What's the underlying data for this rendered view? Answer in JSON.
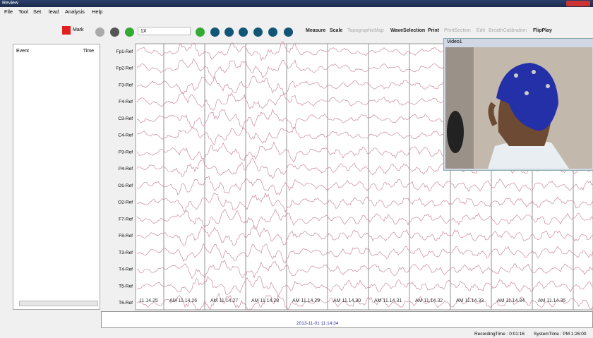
{
  "window": {
    "title": "Review"
  },
  "menu": [
    "File",
    "Tool",
    "Set",
    "lead",
    "Analysis",
    "Help"
  ],
  "toolbar": {
    "mark": "Mark",
    "speed": "1X",
    "buttons": [
      "Measure",
      "Scale",
      "TopographicMap",
      "WaveSelection",
      "Print",
      "PrintSection",
      "Edit",
      "BreathCalibration",
      "FlipPlay"
    ]
  },
  "event_list": {
    "headers": [
      "Event",
      "Time"
    ]
  },
  "channels": [
    "Fp1-Ref",
    "Fp2-Ref",
    "F3-Ref",
    "F4-Ref",
    "C3-Ref",
    "C4-Ref",
    "P3-Ref",
    "P4-Ref",
    "O1-Ref",
    "O2-Ref",
    "F7-Ref",
    "F8-Ref",
    "T3-Ref",
    "T4-Ref",
    "T5-Ref",
    "T6-Ref"
  ],
  "time_labels": [
    "11.14.25",
    "AM 11.14.26",
    "AM 11.14.27",
    "AM 11.14.28",
    "AM 11.14.29",
    "AM 11.14.30",
    "AM 11.14.31",
    "AM 11.14.32",
    "AM 11.14.33",
    "AM 11.14.34",
    "AM 11.14.35"
  ],
  "video": {
    "title": "Video1"
  },
  "timeline": {
    "current": "2013-11-01 11:14:34"
  },
  "status": {
    "recording_time": "RecordingTime : 0:01:16",
    "system_time": "SystemTime : PM 1:26:00"
  }
}
